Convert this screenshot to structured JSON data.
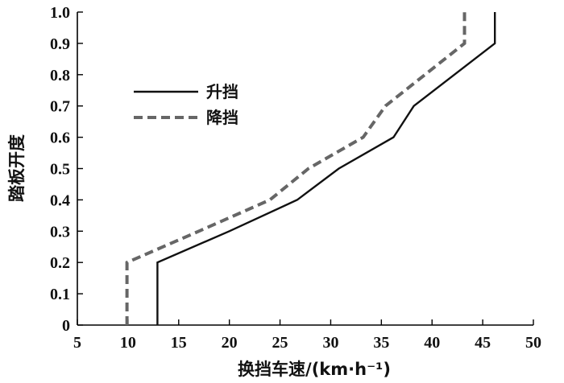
{
  "chart_data": {
    "type": "line",
    "title": "",
    "xlabel": "换挡车速/(km·h⁻¹)",
    "ylabel": "踏板开度",
    "xlim": [
      5,
      50
    ],
    "ylim": [
      0,
      1.0
    ],
    "x_ticks": [
      5,
      10,
      15,
      20,
      25,
      30,
      35,
      40,
      45,
      50
    ],
    "x_tick_labels": [
      "5",
      "10",
      "15",
      "20",
      "25",
      "30",
      "35",
      "40",
      "45",
      "50"
    ],
    "y_ticks": [
      0,
      0.1,
      0.2,
      0.3,
      0.4,
      0.5,
      0.6,
      0.7,
      0.8,
      0.9,
      1.0
    ],
    "y_tick_labels": [
      "0",
      "0.1",
      "0.2",
      "0.3",
      "0.4",
      "0.5",
      "0.6",
      "0.7",
      "0.8",
      "0.9",
      "1.0"
    ],
    "grid": false,
    "legend_position": "top-left",
    "series": [
      {
        "name": "升挡",
        "style": "solid",
        "color": "#111111",
        "points": [
          [
            12.9,
            0
          ],
          [
            12.9,
            0.2
          ],
          [
            20.0,
            0.3
          ],
          [
            26.7,
            0.4
          ],
          [
            30.8,
            0.5
          ],
          [
            36.2,
            0.6
          ],
          [
            38.2,
            0.7
          ],
          [
            46.2,
            0.9
          ],
          [
            46.2,
            1.0
          ]
        ]
      },
      {
        "name": "降挡",
        "style": "dashed",
        "color": "#666666",
        "points": [
          [
            9.9,
            0
          ],
          [
            9.9,
            0.2
          ],
          [
            17.0,
            0.3
          ],
          [
            24.0,
            0.4
          ],
          [
            27.8,
            0.5
          ],
          [
            33.2,
            0.6
          ],
          [
            35.4,
            0.7
          ],
          [
            43.2,
            0.9
          ],
          [
            43.2,
            1.0
          ]
        ]
      }
    ]
  }
}
